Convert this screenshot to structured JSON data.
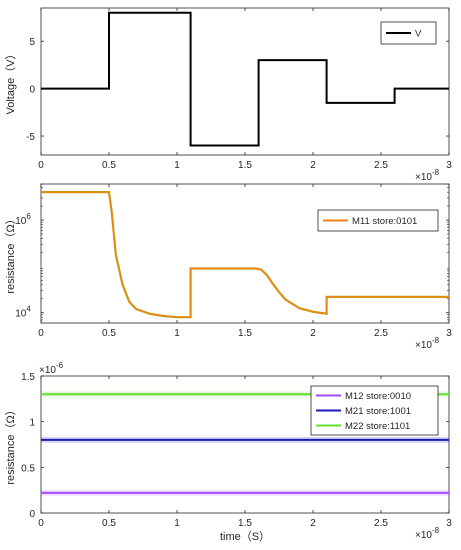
{
  "chart_data": [
    {
      "type": "line",
      "ylabel": "Voltage（V）",
      "xlabel": "",
      "x_exponent_label": "×10",
      "x_exponent": "-8",
      "xlim": [
        0,
        3
      ],
      "ylim": [
        -7,
        8.5
      ],
      "x_ticks": [
        "0",
        "0.5",
        "1",
        "1.5",
        "2",
        "2.5",
        "3"
      ],
      "y_ticks": [
        "-5",
        "0",
        "5"
      ],
      "legend": "top-right",
      "series": [
        {
          "name": "V",
          "color": "#000000",
          "x": [
            0,
            0.5,
            0.5,
            1.1,
            1.1,
            1.6,
            1.6,
            2.1,
            2.1,
            2.6,
            2.6,
            3.0
          ],
          "y": [
            0,
            0,
            8,
            8,
            -6,
            -6,
            3,
            3,
            -1.5,
            -1.5,
            0,
            0
          ]
        }
      ]
    },
    {
      "type": "line",
      "ylabel": "resistance（Ω）",
      "xlabel": "",
      "x_exponent_label": "×10",
      "x_exponent": "-8",
      "xlim": [
        0,
        3
      ],
      "ylim": [
        6000,
        6000000
      ],
      "y_scale": "log",
      "x_ticks": [
        "0",
        "0.5",
        "1",
        "1.5",
        "2",
        "2.5",
        "3"
      ],
      "y_ticks": [
        {
          "value": 10000,
          "base": "10",
          "exp": "4"
        },
        {
          "value": 1000000,
          "base": "10",
          "exp": "6"
        }
      ],
      "legend": "top-right",
      "series": [
        {
          "name": "M11 store:0101",
          "color": "#ff7f0e",
          "x": [
            0,
            0.5,
            0.52,
            0.55,
            0.6,
            0.65,
            0.7,
            0.8,
            0.9,
            1.0,
            1.1,
            1.1,
            1.58,
            1.62,
            1.66,
            1.7,
            1.75,
            1.8,
            1.9,
            2.0,
            2.1,
            2.1,
            3.0
          ],
          "y": [
            4000000,
            4000000,
            1500000,
            180000,
            40000,
            17000,
            12000,
            9500,
            8500,
            8000,
            8000,
            90000,
            90000,
            85000,
            65000,
            44000,
            28000,
            19000,
            12500,
            10500,
            9500,
            22000,
            22000
          ]
        }
      ]
    },
    {
      "type": "line",
      "ylabel": "resistance（Ω）",
      "xlabel": "time（S）",
      "x_exponent_label": "×10",
      "x_exponent": "-8",
      "y_exponent_label": "×10",
      "y_exponent": "-6",
      "xlim": [
        0,
        3
      ],
      "ylim": [
        0,
        1.5
      ],
      "x_ticks": [
        "0",
        "0.5",
        "1",
        "1.5",
        "2",
        "2.5",
        "3"
      ],
      "y_ticks": [
        "0",
        "0.5",
        "1",
        "1.5"
      ],
      "legend": "top-right",
      "series": [
        {
          "name": "M12 store:0010",
          "color": "#a64dff",
          "x": [
            0,
            3
          ],
          "y": [
            0.22,
            0.22
          ]
        },
        {
          "name": "M21 store:1001",
          "color": "#1a1ab8",
          "x": [
            0,
            3
          ],
          "y": [
            0.8,
            0.8
          ]
        },
        {
          "name": "M22 store:1101",
          "color": "#66dd33",
          "x": [
            0,
            3
          ],
          "y": [
            1.3,
            1.3
          ]
        }
      ]
    }
  ]
}
